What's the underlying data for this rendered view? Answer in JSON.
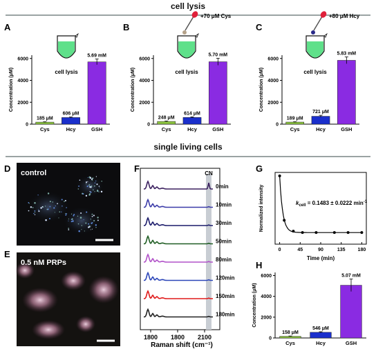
{
  "sections": {
    "top_title": "cell lysis",
    "mid_title": "single living cells"
  },
  "panel_letters": [
    "A",
    "B",
    "C",
    "D",
    "E",
    "F",
    "G",
    "H"
  ],
  "bar_panels": [
    {
      "letter": "A",
      "tube_label": "cell lysis",
      "addition": "",
      "drop_color": "",
      "ylabel": "Concentration (μM)",
      "yticks": [
        0,
        2000,
        4000,
        6000
      ],
      "ylim": [
        0,
        6300
      ],
      "categories": [
        "Cys",
        "Hcy",
        "GSH"
      ],
      "values": [
        185,
        606,
        5690
      ],
      "errors": [
        30,
        45,
        260
      ],
      "labels": [
        "185 μM",
        "606 μM",
        "5.69 mM"
      ],
      "colors": [
        "#8dc63f",
        "#1a2fcc",
        "#8a2be2"
      ]
    },
    {
      "letter": "B",
      "tube_label": "cell lysis",
      "addition": "+70 μM Cys",
      "drop_color": "#b5a28a",
      "ylabel": "Concentration (μM)",
      "yticks": [
        0,
        2000,
        4000,
        6000
      ],
      "ylim": [
        0,
        6300
      ],
      "categories": [
        "Cys",
        "Hcy",
        "GSH"
      ],
      "values": [
        248,
        614,
        5700
      ],
      "errors": [
        35,
        50,
        320
      ],
      "labels": [
        "248 μM",
        "614 μM",
        "5.70 mM"
      ],
      "colors": [
        "#8dc63f",
        "#1a2fcc",
        "#8a2be2"
      ]
    },
    {
      "letter": "C",
      "tube_label": "cell lysis",
      "addition": "+80 μM Hcy",
      "drop_color": "#2a2a8a",
      "ylabel": "Concentration (μM)",
      "yticks": [
        0,
        2000,
        4000,
        6000
      ],
      "ylim": [
        0,
        6300
      ],
      "categories": [
        "Cys",
        "Hcy",
        "GSH"
      ],
      "values": [
        189,
        721,
        5830
      ],
      "errors": [
        30,
        90,
        310
      ],
      "labels": [
        "189 μM",
        "721 μM",
        "5.83 mM"
      ],
      "colors": [
        "#8dc63f",
        "#1a2fcc",
        "#8a2be2"
      ]
    },
    {
      "letter": "H",
      "tube_label": "",
      "addition": "",
      "drop_color": "",
      "ylabel": "Concentration (μM)",
      "yticks": [
        0,
        2000,
        4000,
        6000
      ],
      "ylim": [
        0,
        6300
      ],
      "categories": [
        "Cys",
        "Hcy",
        "GSH"
      ],
      "values": [
        158,
        546,
        5070
      ],
      "errors": [
        30,
        50,
        600
      ],
      "labels": [
        "158 μM",
        "546 μM",
        "5.07 mM"
      ],
      "colors": [
        "#8dc63f",
        "#1a2fcc",
        "#8a2be2"
      ]
    }
  ],
  "images": {
    "d_label": "control",
    "e_label": "0.5 nM PRPs"
  },
  "chart_data": [
    {
      "type": "line",
      "panel": "F",
      "xlabel": "Raman shift (cm⁻¹)",
      "xticks": [
        "1800",
        "1800",
        "2100"
      ],
      "marker": "CN",
      "series": [
        {
          "name": "0min",
          "color": "#3a1f5e"
        },
        {
          "name": "10min",
          "color": "#3a3aa8"
        },
        {
          "name": "30min",
          "color": "#1a1a6a"
        },
        {
          "name": "50min",
          "color": "#1e5c22"
        },
        {
          "name": "80min",
          "color": "#b050c8"
        },
        {
          "name": "120min",
          "color": "#2a44b8"
        },
        {
          "name": "150min",
          "color": "#e01818"
        },
        {
          "name": "180min",
          "color": "#202020"
        }
      ]
    },
    {
      "type": "scatter",
      "panel": "G",
      "ylabel": "Normalized intensity",
      "xlabel": "Time (min)",
      "xticks": [
        0,
        45,
        90,
        135,
        180
      ],
      "xlim": [
        -10,
        190
      ],
      "ylim": [
        0,
        1.05
      ],
      "x": [
        0,
        10,
        30,
        50,
        80,
        120,
        150,
        180
      ],
      "y": [
        1.0,
        0.35,
        0.19,
        0.17,
        0.17,
        0.17,
        0.17,
        0.17
      ],
      "annotation_prefix": "k",
      "annotation_sub": "cell",
      "annotation_rest": " = 0.1483 ± 0.0222 min",
      "annotation_sup": "-1"
    },
    {
      "type": "bar",
      "panel": "A",
      "categories": [
        "Cys",
        "Hcy",
        "GSH"
      ],
      "values": [
        185,
        606,
        5690
      ]
    },
    {
      "type": "bar",
      "panel": "B",
      "categories": [
        "Cys",
        "Hcy",
        "GSH"
      ],
      "values": [
        248,
        614,
        5700
      ]
    },
    {
      "type": "bar",
      "panel": "C",
      "categories": [
        "Cys",
        "Hcy",
        "GSH"
      ],
      "values": [
        189,
        721,
        5830
      ]
    },
    {
      "type": "bar",
      "panel": "H",
      "categories": [
        "Cys",
        "Hcy",
        "GSH"
      ],
      "values": [
        158,
        546,
        5070
      ]
    }
  ]
}
